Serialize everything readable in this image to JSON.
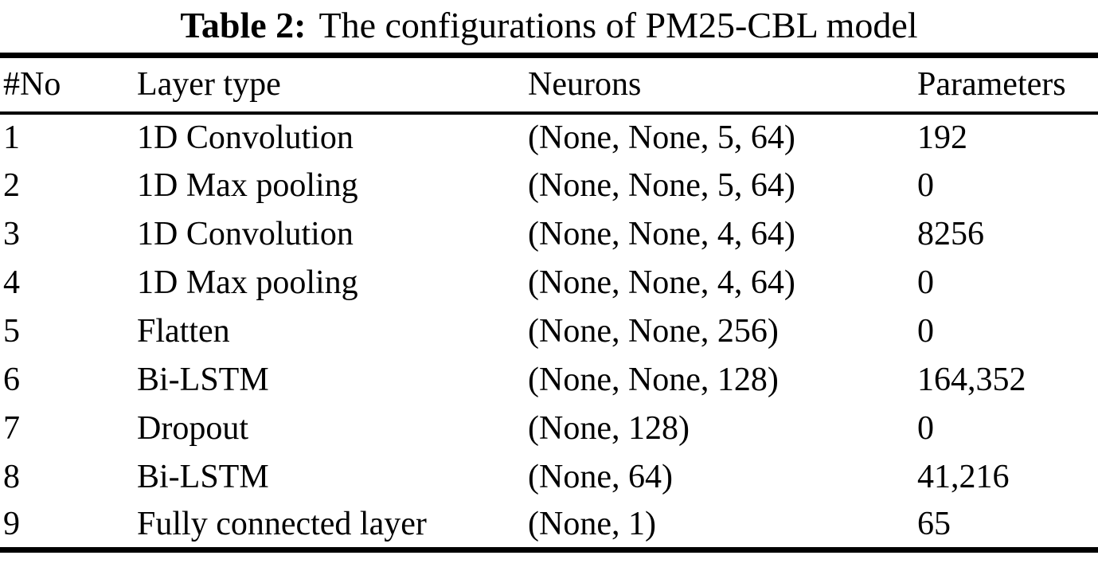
{
  "caption": {
    "label": "Table 2:",
    "text": "The configurations of PM25-CBL model"
  },
  "table": {
    "columns": [
      "#No",
      "Layer type",
      "Neurons",
      "Parameters"
    ],
    "rows": [
      {
        "no": "1",
        "layer_type": "1D Convolution",
        "neurons": "(None, None, 5, 64)",
        "parameters": "192"
      },
      {
        "no": "2",
        "layer_type": "1D Max pooling",
        "neurons": "(None, None, 5, 64)",
        "parameters": "0"
      },
      {
        "no": "3",
        "layer_type": "1D Convolution",
        "neurons": "(None, None, 4, 64)",
        "parameters": "8256"
      },
      {
        "no": "4",
        "layer_type": "1D Max pooling",
        "neurons": "(None, None, 4, 64)",
        "parameters": "0"
      },
      {
        "no": "5",
        "layer_type": "Flatten",
        "neurons": "(None, None, 256)",
        "parameters": "0"
      },
      {
        "no": "6",
        "layer_type": "Bi-LSTM",
        "neurons": "(None, None, 128)",
        "parameters": "164,352"
      },
      {
        "no": "7",
        "layer_type": "Dropout",
        "neurons": "(None, 128)",
        "parameters": "0"
      },
      {
        "no": "8",
        "layer_type": "Bi-LSTM",
        "neurons": "(None, 64)",
        "parameters": "41,216"
      },
      {
        "no": "9",
        "layer_type": "Fully connected layer",
        "neurons": "(None, 1)",
        "parameters": "65"
      }
    ]
  },
  "colors": {
    "text": "#000000",
    "background": "#ffffff",
    "rule": "#000000"
  }
}
